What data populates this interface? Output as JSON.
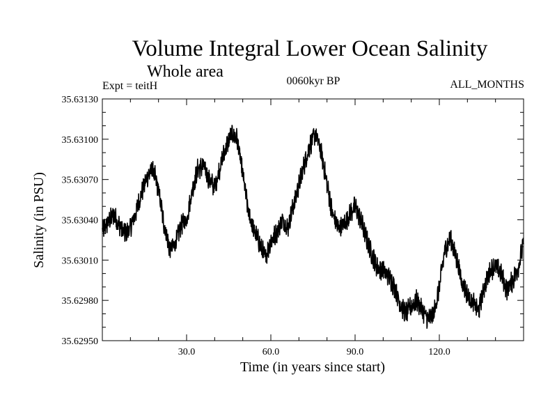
{
  "header": {
    "title": "Volume Integral Lower Ocean Salinity",
    "subtitle": "Whole area",
    "experiment": "Expt = teitH",
    "period": "0060kyr BP",
    "months": "ALL_MONTHS"
  },
  "chart_data": {
    "type": "line",
    "title": "Volume Integral Lower Ocean Salinity",
    "subtitle": "Whole area",
    "xlabel": "Time (in years since start)",
    "ylabel": "Salinity (in PSU)",
    "xlim": [
      0,
      150
    ],
    "ylim": [
      35.6295,
      35.6313
    ],
    "xticks": [
      30,
      60,
      90,
      120
    ],
    "xtick_labels": [
      "30.0",
      "60.0",
      "90.0",
      "120.0"
    ],
    "yticks": [
      35.6295,
      35.6298,
      35.6301,
      35.6304,
      35.6307,
      35.631,
      35.6313
    ],
    "ytick_labels": [
      "35.62950",
      "35.62980",
      "35.63010",
      "35.63040",
      "35.63070",
      "35.63100",
      "35.63130"
    ],
    "grid": false,
    "series": [
      {
        "name": "salinity",
        "x": [
          0,
          2,
          4,
          6,
          8,
          10,
          12,
          14,
          16,
          18,
          20,
          22,
          24,
          26,
          28,
          30,
          32,
          34,
          36,
          38,
          40,
          42,
          44,
          46,
          48,
          50,
          52,
          54,
          56,
          58,
          60,
          62,
          64,
          66,
          68,
          70,
          72,
          74,
          76,
          78,
          80,
          82,
          84,
          86,
          88,
          90,
          92,
          94,
          96,
          98,
          100,
          102,
          104,
          106,
          108,
          110,
          112,
          114,
          116,
          118,
          120,
          122,
          124,
          126,
          128,
          130,
          132,
          134,
          136,
          138,
          140,
          142,
          144,
          146,
          148,
          150
        ],
        "values": [
          35.63032,
          35.63038,
          35.63044,
          35.63036,
          35.6303,
          35.63034,
          35.63046,
          35.6306,
          35.63072,
          35.63078,
          35.63062,
          35.63036,
          35.63018,
          35.63022,
          35.63036,
          35.6304,
          35.63062,
          35.63078,
          35.6308,
          35.6307,
          35.63064,
          35.6308,
          35.63094,
          35.63104,
          35.631,
          35.63074,
          35.63046,
          35.63032,
          35.63022,
          35.63012,
          35.63024,
          35.6303,
          35.6304,
          35.63034,
          35.6305,
          35.63066,
          35.63082,
          35.63096,
          35.63104,
          35.6309,
          35.63066,
          35.63044,
          35.63034,
          35.63036,
          35.63044,
          35.6305,
          35.6304,
          35.63026,
          35.63014,
          35.63004,
          35.63002,
          35.62998,
          35.6299,
          35.62978,
          35.6297,
          35.62976,
          35.6298,
          35.62972,
          35.62966,
          35.6297,
          35.6299,
          35.63018,
          35.63026,
          35.63012,
          35.62994,
          35.62984,
          35.62978,
          35.62972,
          35.6299,
          35.63002,
          35.63006,
          35.63,
          35.62988,
          35.62994,
          35.63004,
          35.63022
        ]
      }
    ]
  }
}
